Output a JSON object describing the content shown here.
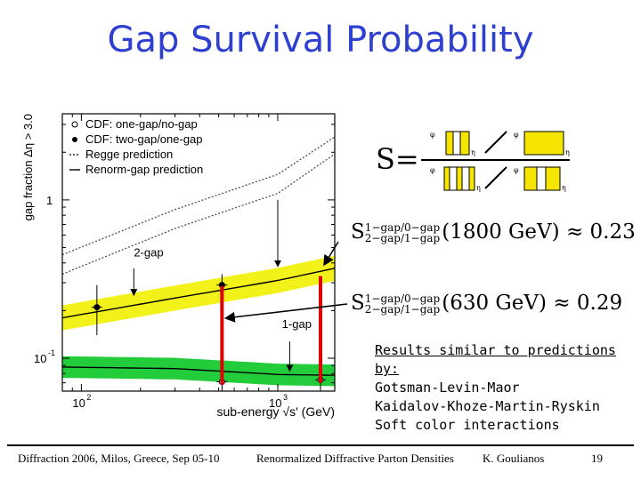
{
  "slide": {
    "title": "Gap Survival Probability",
    "formula": {
      "lhs": "S",
      "eq": "=",
      "box_axis_phi": "φ",
      "box_axis_eta": "η"
    },
    "results": [
      {
        "super": "1−gap/0−gap",
        "sub": "2−gap/1−gap",
        "energy": "(1800 GeV)",
        "approx": "≈",
        "value": "0.23"
      },
      {
        "super": "1−gap/0−gap",
        "sub": "2−gap/1−gap",
        "energy": "(630 GeV)",
        "approx": "≈",
        "value": "0.29"
      }
    ],
    "similar": {
      "heading": "Results similar to predictions by:",
      "items": [
        "Gotsman-Levin-Maor",
        "Kaidalov-Khoze-Martin-Ryskin",
        "Soft color interactions"
      ]
    },
    "footer": {
      "left": "Diffraction 2006, Milos, Greece, Sep 05-10",
      "center": "Renormalized Diffractive Parton Densities",
      "author": "K. Goulianos",
      "page": "19"
    }
  },
  "chart_data": {
    "type": "scatter",
    "x_scale": "log",
    "y_scale": "log",
    "xlim": [
      80,
      1950
    ],
    "ylim": [
      0.062,
      3.5
    ],
    "xlabel": "sub-energy √s' (GeV)",
    "ylabel": "gap fraction Δη > 3.0",
    "x_ticks": [
      {
        "value": 100,
        "label": "10",
        "exp": "2"
      },
      {
        "value": 1000,
        "label": "10",
        "exp": "3"
      }
    ],
    "y_ticks": [
      {
        "value": 1,
        "label": "1",
        "exp": ""
      },
      {
        "value": 0.1,
        "label": "10",
        "exp": "-1"
      }
    ],
    "legend": [
      {
        "marker": "open-circle",
        "label": "CDF: one-gap/no-gap"
      },
      {
        "marker": "filled-circle",
        "label": "CDF: two-gap/one-gap"
      },
      {
        "marker": "dotted-line",
        "label": "Regge prediction"
      },
      {
        "marker": "solid-line",
        "label": "Renorm-gap prediction"
      }
    ],
    "series": [
      {
        "name": "CDF: two-gap/one-gap",
        "marker": "filled-circle",
        "points": [
          {
            "x": 120,
            "y": 0.21,
            "y_lo": 0.14,
            "y_hi": 0.29
          },
          {
            "x": 520,
            "y": 0.29,
            "y_lo": 0.25,
            "y_hi": 0.34
          }
        ]
      },
      {
        "name": "CDF: one-gap/no-gap",
        "marker": "open-circle",
        "points": [
          {
            "x": 520,
            "y": 0.071,
            "y_lo": 0.055,
            "y_hi": 0.09
          },
          {
            "x": 1650,
            "y": 0.073,
            "y_lo": 0.057,
            "y_hi": 0.093
          }
        ]
      }
    ],
    "curves": [
      {
        "name": "Regge prediction upper",
        "style": "dotted",
        "points": [
          [
            80,
            0.45
          ],
          [
            300,
            0.87
          ],
          [
            1000,
            1.45
          ],
          [
            1950,
            2.5
          ]
        ]
      },
      {
        "name": "Regge prediction lower",
        "style": "dotted",
        "points": [
          [
            80,
            0.34
          ],
          [
            300,
            0.66
          ],
          [
            1000,
            1.1
          ],
          [
            1950,
            1.95
          ]
        ]
      },
      {
        "name": "Renorm-gap prediction (2-gap)",
        "style": "solid",
        "points": [
          [
            80,
            0.18
          ],
          [
            300,
            0.24
          ],
          [
            1000,
            0.31
          ],
          [
            1950,
            0.37
          ]
        ]
      },
      {
        "name": "Renorm-gap prediction (1-gap)",
        "style": "solid",
        "points": [
          [
            80,
            0.088
          ],
          [
            300,
            0.086
          ],
          [
            1000,
            0.079
          ],
          [
            1950,
            0.078
          ]
        ]
      }
    ],
    "bands": [
      {
        "color": "#f2f21a",
        "around": "Renorm-gap prediction (2-gap)",
        "factor": 1.2
      },
      {
        "color": "#22cc3a",
        "around": "Renorm-gap prediction (1-gap)",
        "factor": 1.17
      }
    ],
    "annotations": [
      {
        "text": "2-gap",
        "x": 185,
        "y": 0.44
      },
      {
        "text": "1-gap",
        "x": 1050,
        "y": 0.155
      }
    ]
  }
}
